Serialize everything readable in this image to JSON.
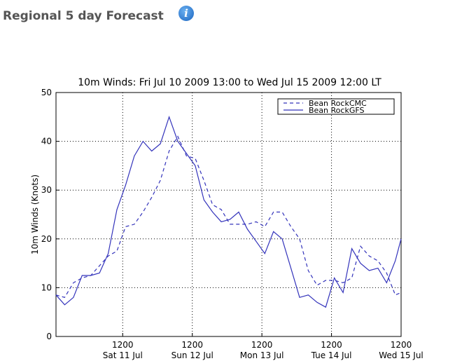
{
  "header": {
    "title": "Regional 5 day Forecast",
    "icon": "i"
  },
  "chart_data": {
    "type": "line",
    "title": "10m Winds: Fri Jul 10 2009 13:00 to Wed Jul 15 2009 12:00 LT",
    "y_label": "10m Winds (Knots)",
    "x": [
      "2009-07-10T13:00",
      "2009-07-10T16:00",
      "2009-07-10T19:00",
      "2009-07-10T22:00",
      "2009-07-11T01:00",
      "2009-07-11T04:00",
      "2009-07-11T07:00",
      "2009-07-11T10:00",
      "2009-07-11T13:00",
      "2009-07-11T16:00",
      "2009-07-11T19:00",
      "2009-07-11T22:00",
      "2009-07-12T01:00",
      "2009-07-12T04:00",
      "2009-07-12T07:00",
      "2009-07-12T10:00",
      "2009-07-12T13:00",
      "2009-07-12T16:00",
      "2009-07-12T19:00",
      "2009-07-12T22:00",
      "2009-07-13T01:00",
      "2009-07-13T04:00",
      "2009-07-13T07:00",
      "2009-07-13T10:00",
      "2009-07-13T13:00",
      "2009-07-13T16:00",
      "2009-07-13T19:00",
      "2009-07-13T22:00",
      "2009-07-14T01:00",
      "2009-07-14T04:00",
      "2009-07-14T07:00",
      "2009-07-14T10:00",
      "2009-07-14T13:00",
      "2009-07-14T16:00",
      "2009-07-14T19:00",
      "2009-07-14T22:00",
      "2009-07-15T01:00",
      "2009-07-15T04:00",
      "2009-07-15T07:00",
      "2009-07-15T10:00",
      "2009-07-15T12:00"
    ],
    "series": [
      {
        "name": "Bean RockCMC",
        "color": "#3333bb",
        "dash": true,
        "values": [
          8.5,
          8,
          11,
          12,
          12.5,
          14.5,
          16.5,
          17.5,
          22.5,
          23,
          25.5,
          28.5,
          32,
          38,
          41,
          37,
          36.5,
          32,
          27,
          26,
          23,
          23,
          23,
          23.5,
          22.5,
          25.5,
          25.5,
          22.5,
          20,
          13.5,
          10.5,
          11.5,
          11.5,
          11,
          12,
          18.5,
          16.5,
          15.5,
          13,
          8.5,
          9
        ]
      },
      {
        "name": "Bean RockGFS",
        "color": "#3333bb",
        "dash": false,
        "values": [
          8.5,
          6.5,
          8,
          12.5,
          12.5,
          13,
          17,
          26,
          31,
          37,
          40,
          38,
          39.5,
          45,
          40,
          37.5,
          35,
          28,
          25.5,
          23.5,
          24,
          25.5,
          22,
          19.5,
          17,
          21.5,
          20,
          14,
          8,
          8.5,
          7,
          6,
          12,
          9,
          18,
          15,
          13.5,
          14,
          11,
          15.5,
          20
        ]
      }
    ],
    "xlim": [
      "2009-07-10T13:00",
      "2009-07-15T12:00"
    ],
    "xticks": [
      {
        "value": "2009-07-11T12:00",
        "label": "1200\nSat 11 Jul"
      },
      {
        "value": "2009-07-12T12:00",
        "label": "1200\nSun 12 Jul"
      },
      {
        "value": "2009-07-13T12:00",
        "label": "1200\nMon 13 Jul"
      },
      {
        "value": "2009-07-14T12:00",
        "label": "1200\nTue 14 Jul"
      },
      {
        "value": "2009-07-15T12:00",
        "label": "1200\nWed 15 Jul"
      }
    ],
    "ylim": [
      0,
      50
    ],
    "yticks": [
      0,
      10,
      20,
      30,
      40,
      50
    ],
    "grid": true,
    "legend": "upper right"
  }
}
